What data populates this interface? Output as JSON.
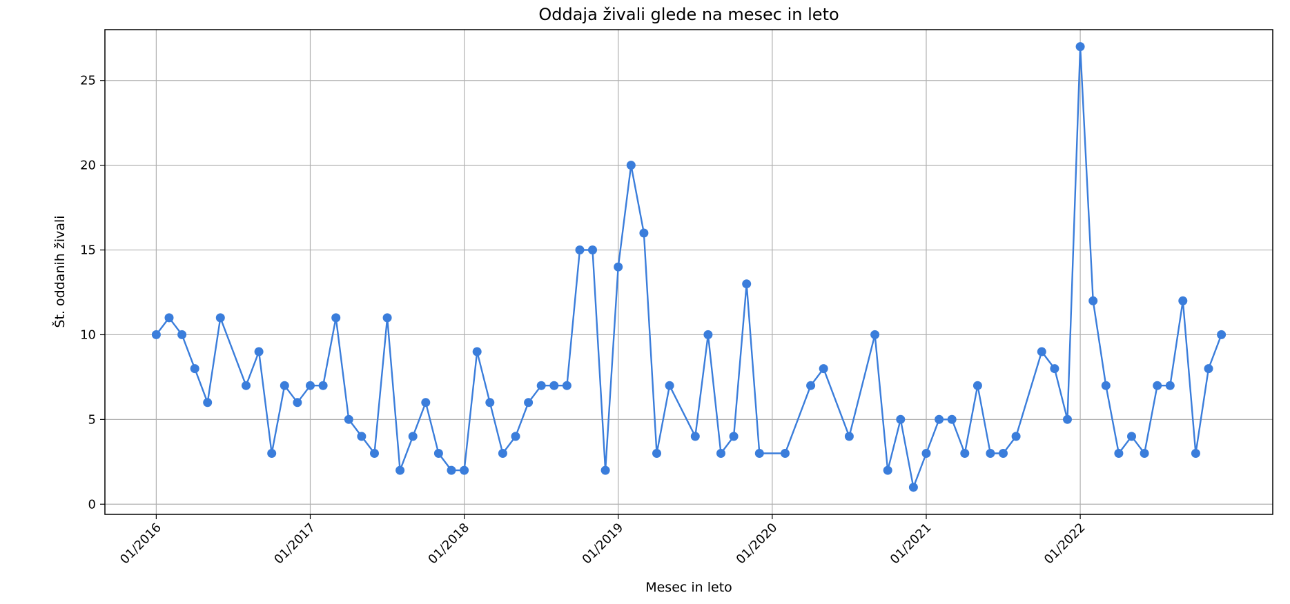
{
  "chart_data": {
    "type": "line",
    "title": "Oddaja živali glede na mesec in leto",
    "xlabel": "Mesec in leto",
    "ylabel": "Št. oddanih živali",
    "ylim": [
      0,
      28
    ],
    "yticks": [
      0,
      5,
      10,
      15,
      20,
      25
    ],
    "xticks": [
      "2016-01",
      "2017-01",
      "2018-01",
      "2019-01",
      "2020-01",
      "2021-01",
      "2022-01"
    ],
    "xtick_labels": [
      "01/2016",
      "01/2017",
      "01/2018",
      "01/2019",
      "01/2020",
      "01/2021",
      "01/2022"
    ],
    "xlim": [
      "2015-09",
      "2023-04"
    ],
    "grid": true,
    "color": "#3a7ddb",
    "series": [
      {
        "x": [
          "2016-01",
          "2016-02",
          "2016-03",
          "2016-04",
          "2016-05",
          "2016-06",
          "2016-08",
          "2016-09",
          "2016-10",
          "2016-11",
          "2016-12",
          "2017-01",
          "2017-02",
          "2017-03",
          "2017-04",
          "2017-05",
          "2017-06",
          "2017-07",
          "2017-08",
          "2017-09",
          "2017-10",
          "2017-11",
          "2017-12",
          "2018-01",
          "2018-02",
          "2018-03",
          "2018-04",
          "2018-05",
          "2018-06",
          "2018-07",
          "2018-08",
          "2018-09",
          "2018-10",
          "2018-11",
          "2018-12",
          "2019-01",
          "2019-02",
          "2019-03",
          "2019-04",
          "2019-05",
          "2019-07",
          "2019-08",
          "2019-09",
          "2019-10",
          "2019-11",
          "2019-12",
          "2020-02",
          "2020-04",
          "2020-05",
          "2020-07",
          "2020-09",
          "2020-10",
          "2020-11",
          "2020-12",
          "2021-01",
          "2021-02",
          "2021-03",
          "2021-04",
          "2021-05",
          "2021-06",
          "2021-07",
          "2021-08",
          "2021-10",
          "2021-11",
          "2021-12",
          "2022-01",
          "2022-02",
          "2022-03",
          "2022-04",
          "2022-05",
          "2022-06",
          "2022-07",
          "2022-08",
          "2022-09",
          "2022-10",
          "2022-11",
          "2022-12"
        ],
        "values": [
          10,
          11,
          10,
          8,
          6,
          11,
          7,
          9,
          3,
          7,
          6,
          7,
          7,
          11,
          5,
          4,
          3,
          11,
          2,
          4,
          6,
          3,
          2,
          2,
          9,
          6,
          3,
          4,
          6,
          7,
          7,
          7,
          15,
          15,
          2,
          14,
          20,
          16,
          3,
          7,
          4,
          10,
          3,
          4,
          13,
          3,
          3,
          7,
          8,
          4,
          10,
          2,
          5,
          1,
          3,
          5,
          5,
          3,
          7,
          3,
          3,
          4,
          9,
          8,
          5,
          27,
          12,
          7,
          3,
          4,
          3,
          7,
          7,
          12,
          3,
          8,
          10
        ]
      }
    ]
  }
}
